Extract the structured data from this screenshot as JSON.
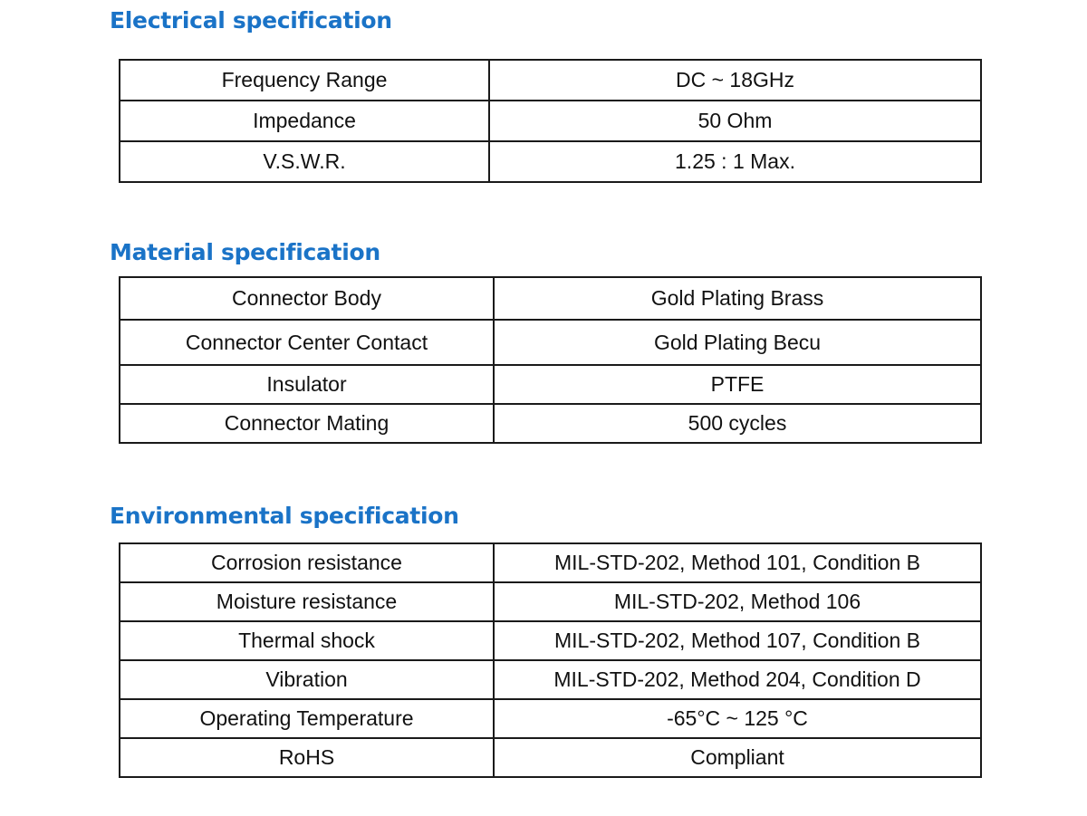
{
  "electrical": {
    "title": "Electrical specification",
    "rows": [
      {
        "label": "Frequency Range",
        "value": "DC ~ 18GHz"
      },
      {
        "label": "Impedance",
        "value": "50 Ohm"
      },
      {
        "label": "V.S.W.R.",
        "value": "1.25 : 1 Max."
      }
    ]
  },
  "material": {
    "title": "Material specification",
    "rows": [
      {
        "label": "Connector Body",
        "value": "Gold Plating Brass"
      },
      {
        "label": "Connector Center Contact",
        "value": "Gold Plating Becu"
      },
      {
        "label": "Insulator",
        "value": "PTFE"
      },
      {
        "label": "Connector Mating",
        "value": "500 cycles"
      }
    ]
  },
  "environmental": {
    "title": "Environmental specification",
    "rows": [
      {
        "label": "Corrosion resistance",
        "value": "MIL-STD-202, Method 101, Condition B"
      },
      {
        "label": "Moisture resistance",
        "value": "MIL-STD-202, Method 106"
      },
      {
        "label": "Thermal shock",
        "value": "MIL-STD-202, Method 107, Condition B"
      },
      {
        "label": "Vibration",
        "value": "MIL-STD-202, Method 204, Condition D"
      },
      {
        "label": "Operating Temperature",
        "value": "-65°C ~ 125 °C"
      },
      {
        "label": "RoHS",
        "value": "Compliant"
      }
    ]
  },
  "colors": {
    "heading": "#1a73c7",
    "border": "#1a1a1a",
    "text": "#111111"
  }
}
